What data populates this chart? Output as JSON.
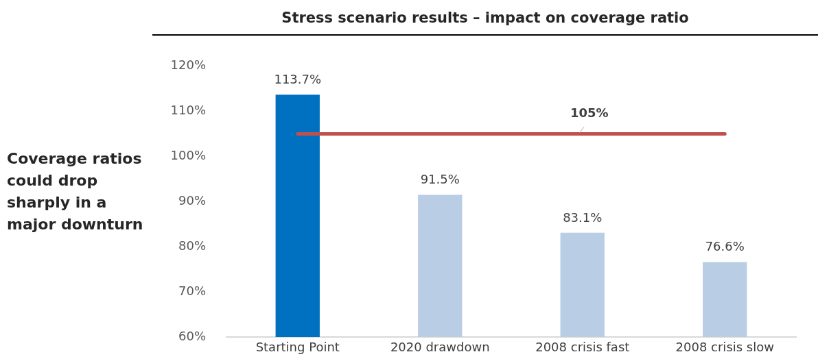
{
  "chart_data": {
    "type": "bar",
    "title": "Stress scenario results – impact on coverage ratio",
    "annotations": [
      "Coverage ratios could drop sharply in a major downturn"
    ],
    "categories": [
      "Starting Point",
      "2020 drawdown",
      "2008 crisis fast",
      "2008 crisis slow"
    ],
    "values": [
      113.7,
      91.5,
      83.1,
      76.6
    ],
    "colors": [
      "#0070c0",
      "#b9cde5",
      "#b9cde5",
      "#b9cde5"
    ],
    "value_labels": [
      "113.7%",
      "91.5%",
      "83.1%",
      "76.6%"
    ],
    "ylim": [
      60,
      120
    ],
    "yticks": [
      {
        "value": 60,
        "label": "60%"
      },
      {
        "value": 70,
        "label": "70%"
      },
      {
        "value": 80,
        "label": "80%"
      },
      {
        "value": 90,
        "label": "90%"
      },
      {
        "value": 100,
        "label": "100%"
      },
      {
        "value": 110,
        "label": "110%"
      },
      {
        "value": 120,
        "label": "120%"
      }
    ],
    "ref_lines": [
      {
        "axis": "y",
        "value": 105,
        "label": "105%",
        "color": "#c0504d"
      }
    ],
    "grid": false,
    "legend": false
  }
}
